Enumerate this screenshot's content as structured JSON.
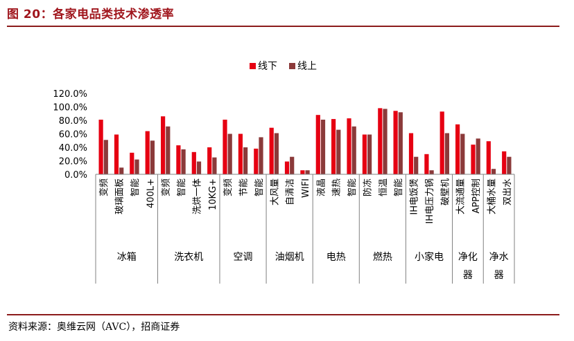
{
  "header": {
    "title": "图 20：各家电品类技术渗透率"
  },
  "footer": {
    "source": "资料来源：奥维云网（AVC），招商证券"
  },
  "colors": {
    "offline": "#e60012",
    "online": "#8b3a3a",
    "accent": "#8b1a1a"
  },
  "chart_data": {
    "type": "bar",
    "title": "",
    "xlabel": "",
    "ylabel": "",
    "ylim": [
      0,
      120
    ],
    "yticks": [
      "0.0%",
      "20.0%",
      "40.0%",
      "60.0%",
      "80.0%",
      "100.0%",
      "120.0%"
    ],
    "legend": [
      "线下",
      "线上"
    ],
    "legend_position": "top-center",
    "grid": false,
    "categories": [
      "变频",
      "玻璃面板",
      "智能",
      "400L+",
      "变频",
      "智能",
      "洗烘一体",
      "10KG+",
      "变频",
      "节能",
      "智能",
      "大风量",
      "自清洁",
      "WIFI",
      "液晶",
      "速热",
      "智能",
      "防冻",
      "恒温",
      "智能",
      "IH电饭煲",
      "IH电压力锅",
      "破壁机",
      "大流通量",
      "APP控制",
      "大桶水量",
      "双出水"
    ],
    "groups": [
      {
        "name": "冰箱",
        "count": 4
      },
      {
        "name": "洗衣机",
        "count": 4
      },
      {
        "name": "空调",
        "count": 3
      },
      {
        "name": "油烟机",
        "count": 3
      },
      {
        "name": "电热",
        "count": 3
      },
      {
        "name": "燃热",
        "count": 3
      },
      {
        "name": "小家电",
        "count": 3
      },
      {
        "name": "净化器",
        "count": 2
      },
      {
        "name": "净水器",
        "count": 2
      }
    ],
    "series": [
      {
        "name": "线下",
        "values": [
          81,
          59,
          32,
          64,
          86,
          43,
          33,
          40,
          81,
          60,
          38,
          69,
          19,
          6,
          88,
          82,
          83,
          59,
          98,
          94,
          61,
          30,
          93,
          74,
          44,
          49,
          34
        ]
      },
      {
        "name": "线上",
        "values": [
          51,
          10,
          22,
          50,
          71,
          37,
          19,
          25,
          60,
          40,
          55,
          61,
          26,
          6,
          81,
          66,
          71,
          59,
          97,
          92,
          26,
          6,
          61,
          60,
          53,
          8,
          26
        ]
      }
    ]
  }
}
